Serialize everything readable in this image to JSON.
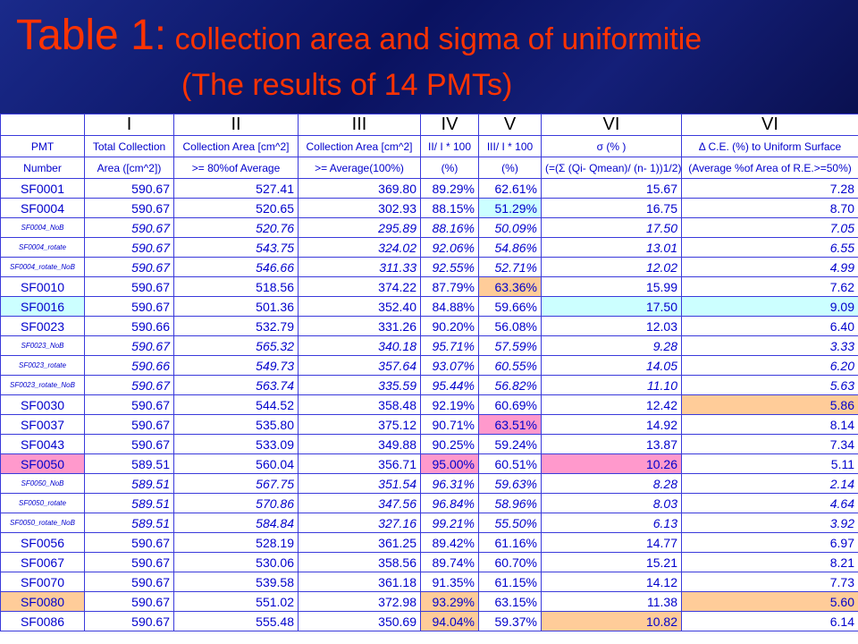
{
  "title": {
    "prefix": "Table 1:",
    "rest": " collection area and sigma of uniformitie",
    "line2": "(The results of 14 PMTs)"
  },
  "columns": {
    "roman": [
      "",
      "I",
      "II",
      "III",
      "IV",
      "V",
      "VI",
      "VI"
    ],
    "header1": [
      "PMT",
      "Total Collection",
      "Collection Area [cm^2]",
      "Collection Area [cm^2]",
      "II/ I * 100",
      "III/ I * 100",
      "σ   (%  )",
      "Δ C.E. (%) to Uniform Surface"
    ],
    "header2": [
      "Number",
      "Area ([cm^2])",
      ">= 80%of Average",
      ">= Average(100%)",
      "(%)",
      "(%)",
      "(=(Σ  (Qi- Qmean)/ (n- 1))1/2)",
      "(Average %of Area of R.E.>=50%)"
    ]
  },
  "rows": [
    {
      "pmt": "SF0001",
      "small": false,
      "italic": false,
      "v": [
        "590.67",
        "527.41",
        "369.80",
        "89.29%",
        "62.61%",
        "15.67",
        "7.28"
      ],
      "hl": [
        "",
        "",
        "",
        "",
        "",
        "",
        ""
      ],
      "pmthl": ""
    },
    {
      "pmt": "SF0004",
      "small": false,
      "italic": false,
      "v": [
        "590.67",
        "520.65",
        "302.93",
        "88.15%",
        "51.29%",
        "16.75",
        "8.70"
      ],
      "hl": [
        "",
        "",
        "",
        "",
        "blue",
        "",
        ""
      ],
      "pmthl": ""
    },
    {
      "pmt": "SF0004_NoB",
      "small": true,
      "italic": true,
      "v": [
        "590.67",
        "520.76",
        "295.89",
        "88.16%",
        "50.09%",
        "17.50",
        "7.05"
      ],
      "hl": [
        "",
        "",
        "",
        "",
        "",
        "",
        ""
      ],
      "pmthl": ""
    },
    {
      "pmt": "SF0004_rotate",
      "small": true,
      "italic": true,
      "v": [
        "590.67",
        "543.75",
        "324.02",
        "92.06%",
        "54.86%",
        "13.01",
        "6.55"
      ],
      "hl": [
        "",
        "",
        "",
        "",
        "",
        "",
        ""
      ],
      "pmthl": ""
    },
    {
      "pmt": "SF0004_rotate_NoB",
      "small": true,
      "italic": true,
      "v": [
        "590.67",
        "546.66",
        "311.33",
        "92.55%",
        "52.71%",
        "12.02",
        "4.99"
      ],
      "hl": [
        "",
        "",
        "",
        "",
        "",
        "",
        ""
      ],
      "pmthl": ""
    },
    {
      "pmt": "SF0010",
      "small": false,
      "italic": false,
      "v": [
        "590.67",
        "518.56",
        "374.22",
        "87.79%",
        "63.36%",
        "15.99",
        "7.62"
      ],
      "hl": [
        "",
        "",
        "",
        "",
        "orange",
        "",
        ""
      ],
      "pmthl": ""
    },
    {
      "pmt": "SF0016",
      "small": false,
      "italic": false,
      "v": [
        "590.67",
        "501.36",
        "352.40",
        "84.88%",
        "59.66%",
        "17.50",
        "9.09"
      ],
      "hl": [
        "",
        "",
        "",
        "",
        "",
        "blue",
        "blue"
      ],
      "pmthl": "blue"
    },
    {
      "pmt": "SF0023",
      "small": false,
      "italic": false,
      "v": [
        "590.66",
        "532.79",
        "331.26",
        "90.20%",
        "56.08%",
        "12.03",
        "6.40"
      ],
      "hl": [
        "",
        "",
        "",
        "",
        "",
        "",
        ""
      ],
      "pmthl": ""
    },
    {
      "pmt": "SF0023_NoB",
      "small": true,
      "italic": true,
      "v": [
        "590.67",
        "565.32",
        "340.18",
        "95.71%",
        "57.59%",
        "9.28",
        "3.33"
      ],
      "hl": [
        "",
        "",
        "",
        "",
        "",
        "",
        ""
      ],
      "pmthl": ""
    },
    {
      "pmt": "SF0023_rotate",
      "small": true,
      "italic": true,
      "v": [
        "590.66",
        "549.73",
        "357.64",
        "93.07%",
        "60.55%",
        "14.05",
        "6.20"
      ],
      "hl": [
        "",
        "",
        "",
        "",
        "",
        "",
        ""
      ],
      "pmthl": ""
    },
    {
      "pmt": "SF0023_rotate_NoB",
      "small": true,
      "italic": true,
      "v": [
        "590.67",
        "563.74",
        "335.59",
        "95.44%",
        "56.82%",
        "11.10",
        "5.63"
      ],
      "hl": [
        "",
        "",
        "",
        "",
        "",
        "",
        ""
      ],
      "pmthl": ""
    },
    {
      "pmt": "SF0030",
      "small": false,
      "italic": false,
      "v": [
        "590.67",
        "544.52",
        "358.48",
        "92.19%",
        "60.69%",
        "12.42",
        "5.86"
      ],
      "hl": [
        "",
        "",
        "",
        "",
        "",
        "",
        "orange"
      ],
      "pmthl": ""
    },
    {
      "pmt": "SF0037",
      "small": false,
      "italic": false,
      "v": [
        "590.67",
        "535.80",
        "375.12",
        "90.71%",
        "63.51%",
        "14.92",
        "8.14"
      ],
      "hl": [
        "",
        "",
        "",
        "",
        "pink",
        "",
        ""
      ],
      "pmthl": ""
    },
    {
      "pmt": "SF0043",
      "small": false,
      "italic": false,
      "v": [
        "590.67",
        "533.09",
        "349.88",
        "90.25%",
        "59.24%",
        "13.87",
        "7.34"
      ],
      "hl": [
        "",
        "",
        "",
        "",
        "",
        "",
        ""
      ],
      "pmthl": ""
    },
    {
      "pmt": "SF0050",
      "small": false,
      "italic": false,
      "v": [
        "589.51",
        "560.04",
        "356.71",
        "95.00%",
        "60.51%",
        "10.26",
        "5.11"
      ],
      "hl": [
        "",
        "",
        "",
        "pink",
        "",
        "pink",
        ""
      ],
      "pmthl": "pink"
    },
    {
      "pmt": "SF0050_NoB",
      "small": true,
      "italic": true,
      "v": [
        "589.51",
        "567.75",
        "351.54",
        "96.31%",
        "59.63%",
        "8.28",
        "2.14"
      ],
      "hl": [
        "",
        "",
        "",
        "",
        "",
        "",
        ""
      ],
      "pmthl": ""
    },
    {
      "pmt": "SF0050_rotate",
      "small": true,
      "italic": true,
      "v": [
        "589.51",
        "570.86",
        "347.56",
        "96.84%",
        "58.96%",
        "8.03",
        "4.64"
      ],
      "hl": [
        "",
        "",
        "",
        "",
        "",
        "",
        ""
      ],
      "pmthl": ""
    },
    {
      "pmt": "SF0050_rotate_NoB",
      "small": true,
      "italic": true,
      "v": [
        "589.51",
        "584.84",
        "327.16",
        "99.21%",
        "55.50%",
        "6.13",
        "3.92"
      ],
      "hl": [
        "",
        "",
        "",
        "",
        "",
        "",
        ""
      ],
      "pmthl": ""
    },
    {
      "pmt": "SF0056",
      "small": false,
      "italic": false,
      "v": [
        "590.67",
        "528.19",
        "361.25",
        "89.42%",
        "61.16%",
        "14.77",
        "6.97"
      ],
      "hl": [
        "",
        "",
        "",
        "",
        "",
        "",
        ""
      ],
      "pmthl": ""
    },
    {
      "pmt": "SF0067",
      "small": false,
      "italic": false,
      "v": [
        "590.67",
        "530.06",
        "358.56",
        "89.74%",
        "60.70%",
        "15.21",
        "8.21"
      ],
      "hl": [
        "",
        "",
        "",
        "",
        "",
        "",
        ""
      ],
      "pmthl": ""
    },
    {
      "pmt": "SF0070",
      "small": false,
      "italic": false,
      "v": [
        "590.67",
        "539.58",
        "361.18",
        "91.35%",
        "61.15%",
        "14.12",
        "7.73"
      ],
      "hl": [
        "",
        "",
        "",
        "",
        "",
        "",
        ""
      ],
      "pmthl": ""
    },
    {
      "pmt": "SF0080",
      "small": false,
      "italic": false,
      "v": [
        "590.67",
        "551.02",
        "372.98",
        "93.29%",
        "63.15%",
        "11.38",
        "5.60"
      ],
      "hl": [
        "",
        "",
        "",
        "orange",
        "",
        "",
        "orange"
      ],
      "pmthl": "orange"
    },
    {
      "pmt": "SF0086",
      "small": false,
      "italic": false,
      "v": [
        "590.67",
        "555.48",
        "350.69",
        "94.04%",
        "59.37%",
        "10.82",
        "6.14"
      ],
      "hl": [
        "",
        "",
        "",
        "orange",
        "",
        "orange",
        ""
      ],
      "pmthl": ""
    }
  ],
  "colors": {
    "title": "#ff3300",
    "text": "#0000cc",
    "grid": "#3a3adb",
    "highlight_blue": "#ccffff",
    "highlight_orange": "#ffcc99",
    "highlight_pink": "#ff99cc"
  }
}
